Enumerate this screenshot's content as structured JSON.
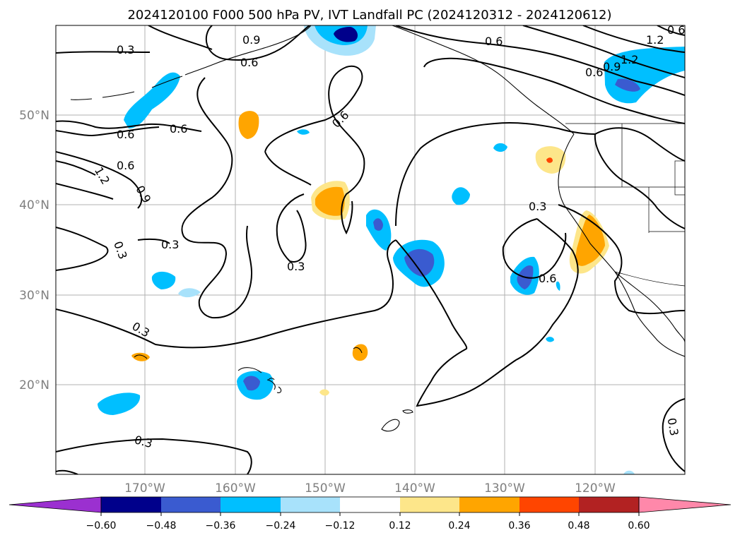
{
  "title": "2024120100 F000 500 hPa PV, IVT Landfall PC (2024120312 - 2024120612)",
  "lat_labels": [
    "50°N",
    "40°N",
    "30°N",
    "20°N"
  ],
  "lon_labels": [
    "170°W",
    "160°W",
    "150°W",
    "140°W",
    "130°W",
    "120°W"
  ],
  "contour_labels": [
    "0.3",
    "0.6",
    "0.9",
    "1.2"
  ],
  "colorbar": {
    "ticks": [
      "−0.60",
      "−0.48",
      "−0.36",
      "−0.24",
      "−0.12",
      "0.12",
      "0.24",
      "0.36",
      "0.48",
      "0.60"
    ],
    "colors": [
      "#9b30d0",
      "#00008b",
      "#3a5bd0",
      "#00bfff",
      "#a8e2fb",
      "#ffffff",
      "#fde68a",
      "#ffa500",
      "#ff4500",
      "#b22222",
      "#ff88aa"
    ]
  },
  "anomaly_colors": {
    "neg_light": "#a8e2fb",
    "neg_mid": "#00bfff",
    "neg_strong": "#3a5bd0",
    "neg_max": "#00008b",
    "pos_light": "#fde68a",
    "pos_mid": "#ffa500",
    "pos_strong": "#ff4500"
  }
}
